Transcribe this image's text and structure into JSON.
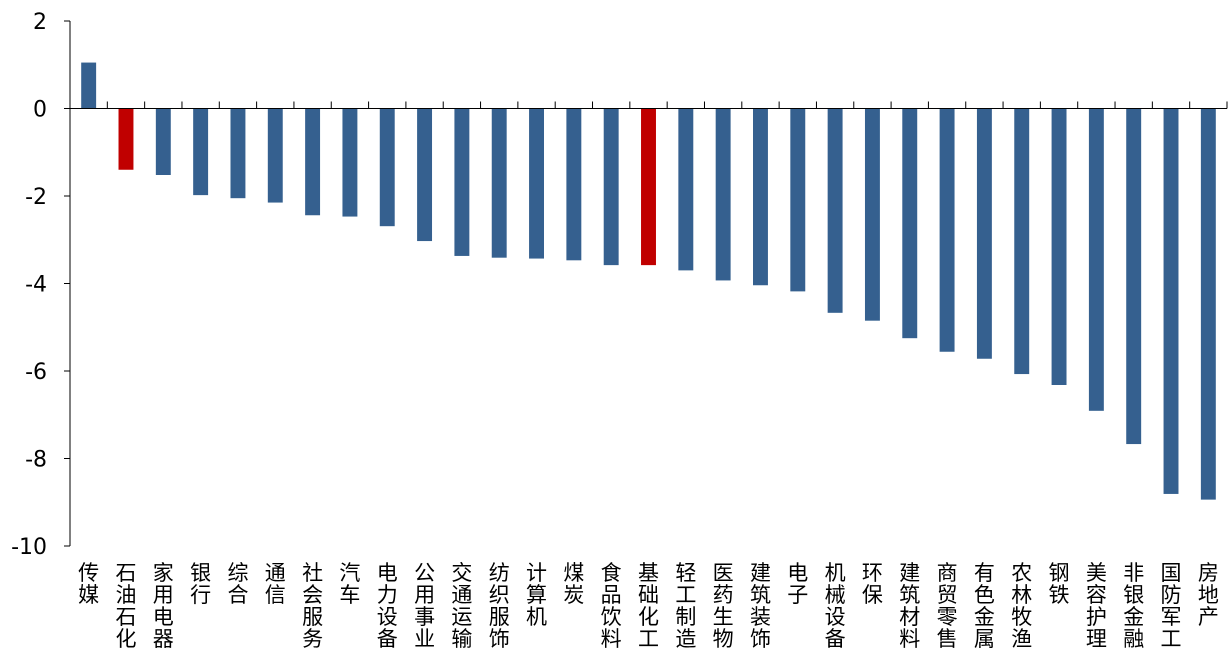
{
  "chart_data": {
    "type": "bar",
    "title": "",
    "xlabel": "",
    "ylabel": "",
    "ylim": [
      -10,
      2
    ],
    "yticks": [
      2,
      0,
      -2,
      -4,
      -6,
      -8,
      -10
    ],
    "grid": false,
    "legend": "none",
    "colors": {
      "default": "#35608F",
      "highlight": "#C00000"
    },
    "categories": [
      "传媒",
      "石油石化",
      "家用电器",
      "银行",
      "综合",
      "通信",
      "社会服务",
      "汽车",
      "电力设备",
      "公用事业",
      "交通运输",
      "纺织服饰",
      "计算机",
      "煤炭",
      "食品饮料",
      "基础化工",
      "轻工制造",
      "医药生物",
      "建筑装饰",
      "电子",
      "机械设备",
      "环保",
      "建筑材料",
      "商贸零售",
      "有色金属",
      "农林牧渔",
      "钢铁",
      "美容护理",
      "非银金融",
      "国防军工",
      "房地产"
    ],
    "values": [
      1.05,
      -1.4,
      -1.52,
      -1.98,
      -2.05,
      -2.15,
      -2.44,
      -2.47,
      -2.69,
      -3.03,
      -3.37,
      -3.41,
      -3.43,
      -3.47,
      -3.58,
      -3.58,
      -3.7,
      -3.93,
      -4.04,
      -4.18,
      -4.67,
      -4.85,
      -5.25,
      -5.56,
      -5.72,
      -6.07,
      -6.32,
      -6.91,
      -7.67,
      -8.81,
      -8.94
    ],
    "highlighted": [
      "石油石化",
      "基础化工"
    ]
  }
}
